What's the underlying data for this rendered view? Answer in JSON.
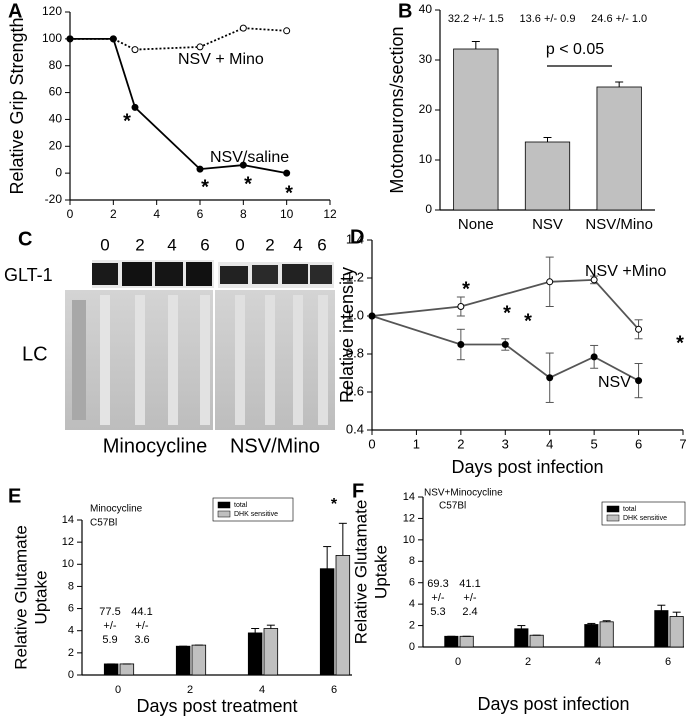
{
  "chart_data": [
    {
      "type": "line",
      "panel_label": "A",
      "ylabel": "Relative Grip Strength",
      "xlim": [
        0,
        12
      ],
      "xticks": [
        0,
        2,
        4,
        6,
        8,
        10,
        12
      ],
      "ylim": [
        -20,
        120
      ],
      "yticks": [
        -20,
        0,
        20,
        40,
        60,
        80,
        100,
        120
      ],
      "series": [
        {
          "name": "NSV + Mino",
          "color": "#000000",
          "dash": "dotted",
          "marker": "open",
          "x": [
            0,
            2,
            3,
            6,
            8,
            10
          ],
          "values": [
            100,
            100,
            92,
            94,
            108,
            106
          ]
        },
        {
          "name": "NSV/saline",
          "color": "#000000",
          "dash": "solid",
          "marker": "filled",
          "x": [
            0,
            2,
            3,
            6,
            8,
            10
          ],
          "values": [
            100,
            100,
            49,
            3,
            6,
            0
          ]
        }
      ],
      "annotations": [
        "*",
        "*",
        "*",
        "*"
      ]
    },
    {
      "type": "bar",
      "panel_label": "B",
      "ylabel": "Motoneurons/section",
      "categories": [
        "None",
        "NSV",
        "NSV/Mino"
      ],
      "values": [
        32.2,
        13.6,
        24.6
      ],
      "errors": [
        1.5,
        0.9,
        1.0
      ],
      "value_labels": [
        "32.2 +/- 1.5",
        "13.6 +/- 0.9",
        "24.6 +/- 1.0"
      ],
      "color": "#c0c0c0",
      "ylim": [
        0,
        40
      ],
      "yticks": [
        0,
        10,
        20,
        30,
        40
      ],
      "annotations": [
        "p < 0.05"
      ]
    },
    {
      "type": "line",
      "panel_label": "D",
      "ylabel": "Relative intensity",
      "xlabel": "Days post infection",
      "xlim": [
        0,
        7
      ],
      "xticks": [
        0,
        1,
        2,
        3,
        4,
        5,
        6,
        7
      ],
      "ylim": [
        0.4,
        1.4
      ],
      "yticks": [
        0.4,
        0.6,
        0.8,
        {
          "value": 1.0,
          "label": "1.0"
        },
        1.2,
        1.4
      ],
      "series": [
        {
          "name": "NSV +Mino",
          "color": "#555555",
          "dash": "solid",
          "marker": "open",
          "x": [
            0,
            2,
            4,
            5,
            6
          ],
          "values": [
            1.0,
            1.05,
            1.18,
            1.19,
            0.93
          ],
          "errors": [
            0,
            0.05,
            0.13,
            0.02,
            0.05
          ]
        },
        {
          "name": "NSV",
          "color": "#555555",
          "dash": "solid",
          "marker": "filled",
          "x": [
            0,
            2,
            3,
            4,
            5,
            6
          ],
          "values": [
            1.0,
            0.85,
            0.85,
            0.675,
            0.785,
            0.66
          ],
          "errors": [
            0,
            0.08,
            0.03,
            0.13,
            0.06,
            0.09
          ]
        }
      ],
      "annotations": [
        "*",
        "*",
        "*",
        "*"
      ]
    },
    {
      "type": "bar",
      "panel_label": "E",
      "ylabel": [
        "Relative Glutamate",
        "Uptake"
      ],
      "xlabel": "Days post treatment",
      "notes": [
        "Minocycline",
        "C57Bl"
      ],
      "categories": [
        "0",
        "2",
        "4",
        "6"
      ],
      "series": [
        {
          "name": "total",
          "color": "#000000",
          "values": [
            1.0,
            2.6,
            3.8,
            9.6
          ],
          "errors": [
            0,
            0,
            0.4,
            2.0
          ]
        },
        {
          "name": "DHK sensitive",
          "color": "#c0c0c0",
          "values": [
            1.0,
            2.7,
            4.2,
            10.8
          ],
          "errors": [
            0,
            0,
            0.3,
            2.9
          ]
        }
      ],
      "ylim": [
        0,
        14
      ],
      "yticks": [
        0,
        2,
        4,
        6,
        8,
        10,
        12,
        14
      ],
      "baselines": [
        [
          "77.5",
          "+/-",
          "5.9"
        ],
        [
          "44.1",
          "+/-",
          "3.6"
        ]
      ],
      "annotations": [
        "*"
      ]
    },
    {
      "type": "bar",
      "panel_label": "F",
      "ylabel": [
        "Relative Glutamate",
        "Uptake"
      ],
      "xlabel": "Days post infection",
      "notes": [
        "NSV+Minocycline",
        "C57Bl"
      ],
      "categories": [
        "0",
        "2",
        "4",
        "6"
      ],
      "series": [
        {
          "name": "total",
          "color": "#000000",
          "values": [
            1.0,
            1.7,
            2.1,
            3.4
          ],
          "errors": [
            0,
            0.3,
            0.1,
            0.5
          ]
        },
        {
          "name": "DHK sensitive",
          "color": "#c0c0c0",
          "values": [
            1.0,
            1.1,
            2.35,
            2.85
          ],
          "errors": [
            0,
            0,
            0.1,
            0.4
          ]
        }
      ],
      "ylim": [
        0,
        14
      ],
      "yticks": [
        0,
        2,
        4,
        6,
        8,
        10,
        12,
        14
      ],
      "baselines": [
        [
          "69.3",
          "+/-",
          "5.3"
        ],
        [
          "41.1",
          "+/-",
          "2.4"
        ]
      ],
      "annotations": []
    }
  ],
  "blot": {
    "panel_label": "C",
    "row_labels": [
      "GLT-1",
      "LC"
    ],
    "lanes": [
      "0",
      "2",
      "4",
      "6",
      "0",
      "2",
      "4",
      "6"
    ],
    "groups": [
      "Minocycline",
      "NSV/Mino"
    ]
  }
}
